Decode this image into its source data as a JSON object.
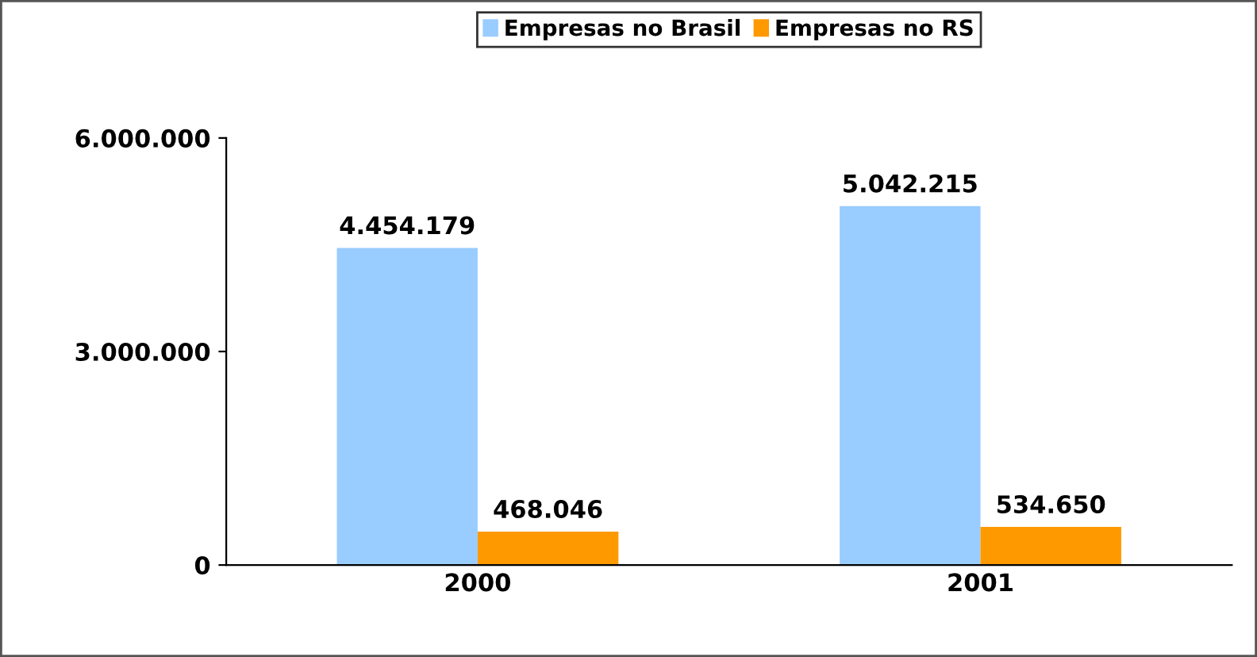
{
  "chart_data": {
    "type": "bar",
    "categories": [
      "2000",
      "2001"
    ],
    "series": [
      {
        "name": "Empresas no Brasil",
        "color": "#99ccff",
        "values": [
          4454179,
          5042215
        ],
        "value_labels": [
          "4.454.179",
          "5.042.215"
        ]
      },
      {
        "name": "Empresas no RS",
        "color": "#ff9900",
        "values": [
          468046,
          534650
        ],
        "value_labels": [
          "468.046",
          "534.650"
        ]
      }
    ],
    "ylim": [
      0,
      6000000
    ],
    "yticks": [
      0,
      {
        "value": 3000000,
        "label": "3.000.000"
      },
      {
        "value": 6000000,
        "label": "6.000.000"
      }
    ],
    "grid": false,
    "legend": "top"
  }
}
